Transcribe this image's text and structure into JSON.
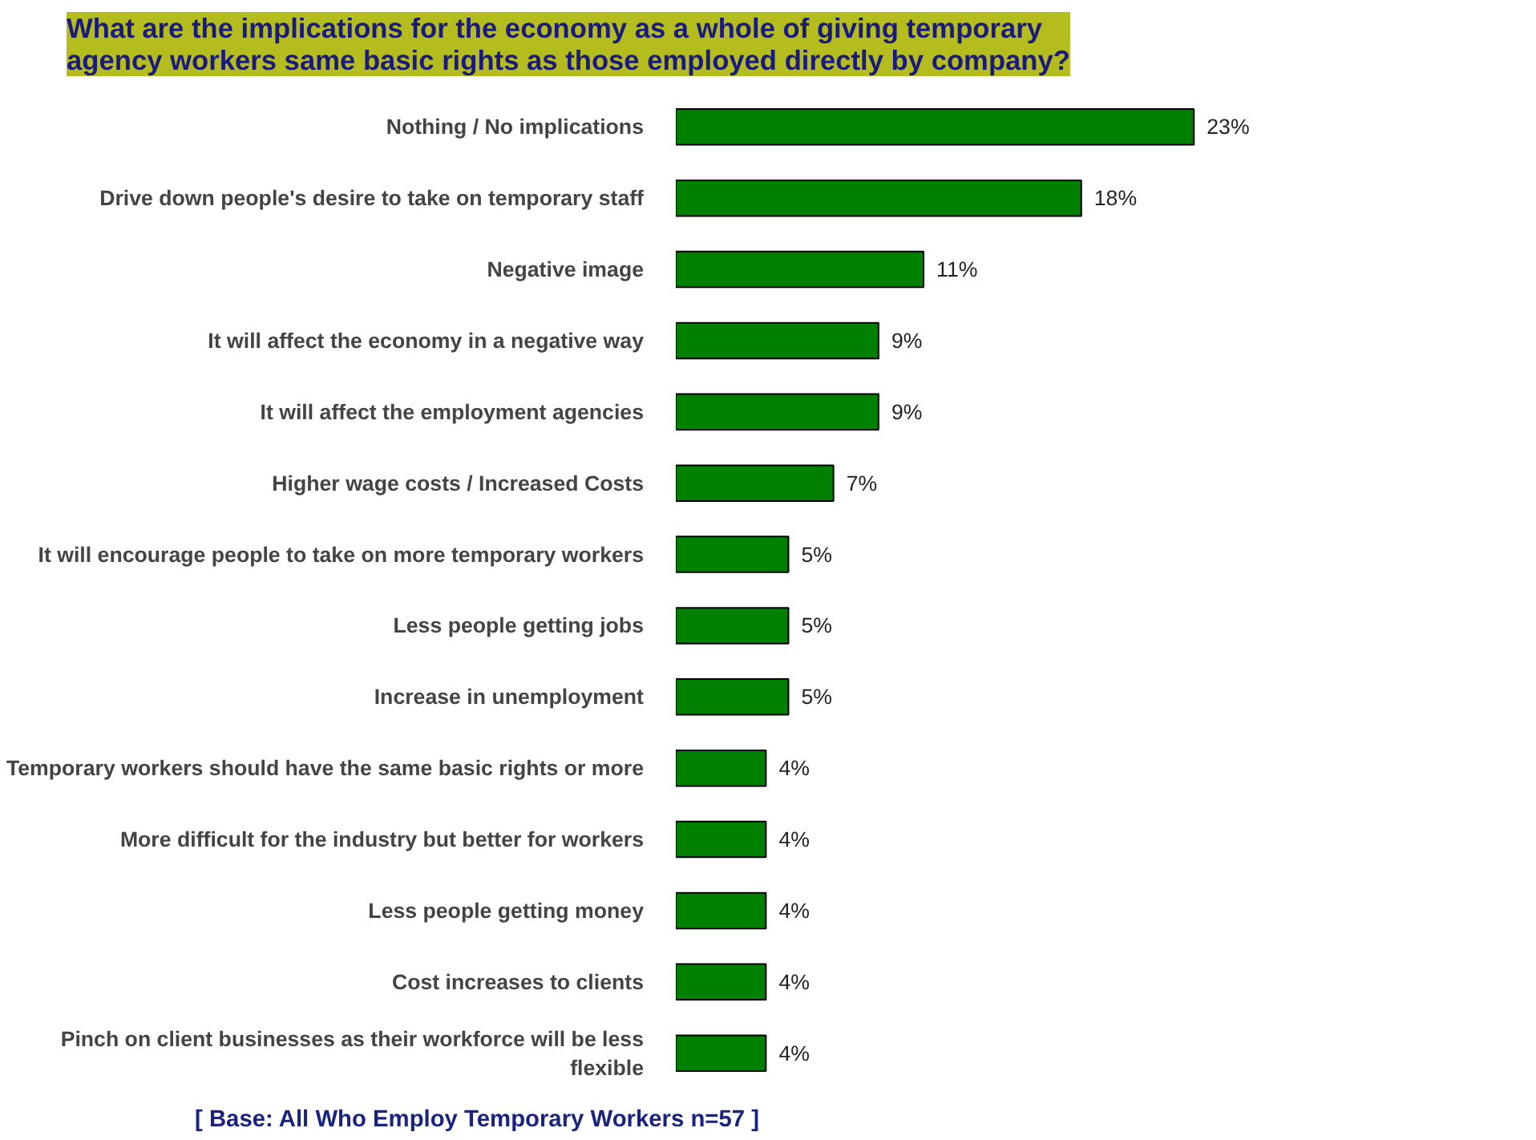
{
  "chart_data": {
    "type": "bar",
    "orientation": "horizontal",
    "title": "What are the implications for the economy as a whole of giving temporary agency workers same basic rights as those employed directly by company?",
    "categories": [
      "Nothing / No implications",
      "Drive down people's desire to take on temporary staff",
      "Negative image",
      "It will affect the economy in a negative way",
      "It will affect the employment agencies",
      "Higher wage costs / Increased Costs",
      "It will encourage people to take on more temporary workers",
      "Less people getting jobs",
      "Increase in unemployment",
      "Temporary workers should have the same basic rights or more",
      "More difficult for the industry but better for workers",
      "Less people getting money",
      "Cost increases to clients",
      "Pinch on client businesses as their workforce will be less flexible"
    ],
    "values": [
      23,
      18,
      11,
      9,
      9,
      7,
      5,
      5,
      5,
      4,
      4,
      4,
      4,
      4
    ],
    "value_labels": [
      "23%",
      "18%",
      "11%",
      "9%",
      "9%",
      "7%",
      "5%",
      "5%",
      "5%",
      "4%",
      "4%",
      "4%",
      "4%",
      "4%"
    ],
    "color": "#008000",
    "grid": false,
    "annotations": [
      "[ Base:  All Who Employ Temporary Workers n=57 ]"
    ]
  }
}
